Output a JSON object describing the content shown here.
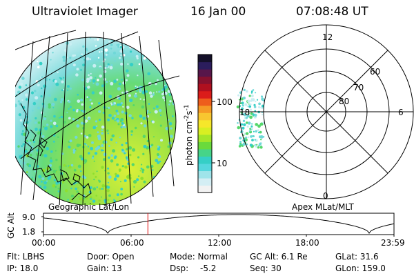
{
  "header": {
    "title": "Ultraviolet Imager",
    "date": "16 Jan 00",
    "time": "07:08:48 UT"
  },
  "colorbar": {
    "label": "photon cm",
    "label_sup1": "-2",
    "label_s": "s",
    "label_sup2": "-1",
    "tick_100": "100",
    "tick_10": "10",
    "colors": [
      "#f2f2f2",
      "#d4eef4",
      "#9fe4ea",
      "#55d7dd",
      "#35cfc6",
      "#46d488",
      "#6ada3c",
      "#a4e629",
      "#d8ef22",
      "#f6e72a",
      "#f8c630",
      "#f59a25",
      "#ee5d1c",
      "#db1c1a",
      "#b0101f",
      "#86112e",
      "#57164a",
      "#2b1d5c",
      "#141029"
    ]
  },
  "panels": {
    "geo_label": "Geographic Lat/Lon",
    "apex_label": "Apex MLat/MLT"
  },
  "polar": {
    "mlt_12": "12",
    "mlt_18": "18",
    "mlt_6": "6",
    "mlt_0": "0",
    "lat_60": "60",
    "lat_70": "70",
    "lat_80": "80"
  },
  "timeline": {
    "ylabel": "GC Alt",
    "y_top": "9.0",
    "y_bottom": "1.8",
    "x_ticks": [
      "00:00",
      "06:00",
      "12:00",
      "18:00",
      "23:59"
    ],
    "current_hour": 7.15
  },
  "info": {
    "flt": "Flt: LBHS",
    "door": "Door: Open",
    "mode": "Mode: Normal",
    "gc_alt": "GC Alt: 6.1 Re",
    "glat": "GLat: 31.6",
    "ip": "IP: 18.0",
    "gain": "Gain: 13",
    "dsp_label": "Dsp:",
    "dsp_value": "-5.2",
    "seq": "Seq: 30",
    "glon": "GLon: 159.0"
  }
}
